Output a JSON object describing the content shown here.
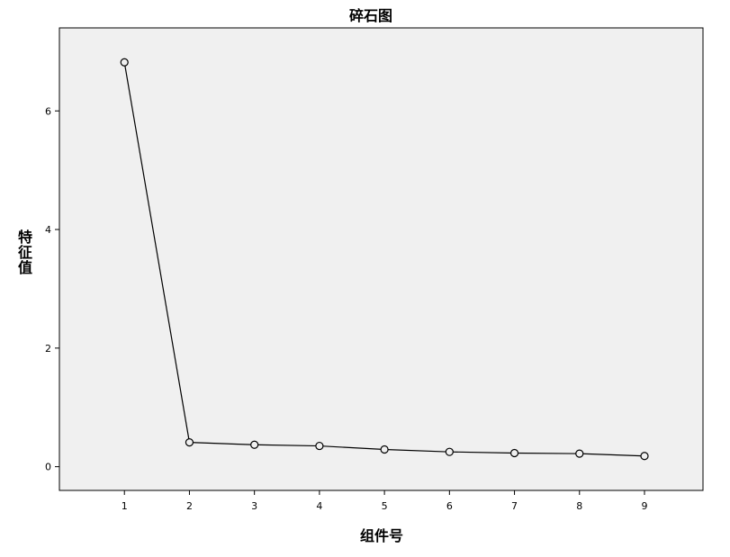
{
  "chart_data": {
    "type": "line",
    "title": "碎石图",
    "xlabel": "组件号",
    "ylabel": "特征值",
    "x": [
      1,
      2,
      3,
      4,
      5,
      6,
      7,
      8,
      9
    ],
    "y": [
      6.82,
      0.41,
      0.37,
      0.35,
      0.29,
      0.25,
      0.23,
      0.22,
      0.18
    ],
    "xticks": [
      1,
      2,
      3,
      4,
      5,
      6,
      7,
      8,
      9
    ],
    "yticks": [
      0,
      2,
      4,
      6
    ],
    "xlim": [
      0,
      9.9
    ],
    "ylim": [
      -0.4,
      7.4
    ],
    "grid": false,
    "legend": "none",
    "marker": "open-circle",
    "colors": {
      "plot_background": "#f0f0f0",
      "line": "#000000",
      "marker_fill": "#f0f0f0"
    }
  }
}
